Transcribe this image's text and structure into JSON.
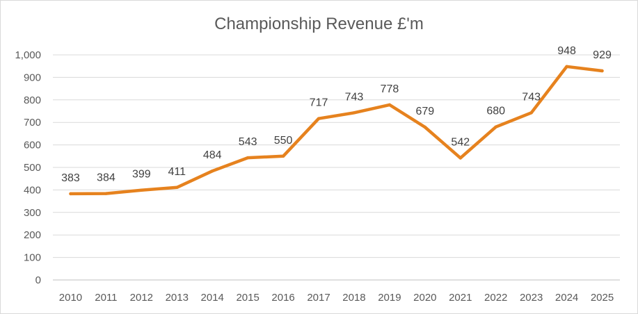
{
  "chart_data": {
    "type": "line",
    "title": "Championship Revenue £'m",
    "xlabel": "",
    "ylabel": "",
    "x": [
      "2010",
      "2011",
      "2012",
      "2013",
      "2014",
      "2015",
      "2016",
      "2017",
      "2018",
      "2019",
      "2020",
      "2021",
      "2022",
      "2023",
      "2024",
      "2025"
    ],
    "series": [
      {
        "values": [
          383,
          384,
          399,
          411,
          484,
          543,
          550,
          717,
          743,
          778,
          679,
          542,
          680,
          743,
          948,
          929
        ],
        "color": "#e6821e"
      }
    ],
    "y_ticks": [
      "0",
      "100",
      "200",
      "300",
      "400",
      "500",
      "600",
      "700",
      "800",
      "900",
      "1,000"
    ],
    "ylim": [
      0,
      1000
    ],
    "grid": true,
    "legend": "none",
    "data_labels": true
  }
}
